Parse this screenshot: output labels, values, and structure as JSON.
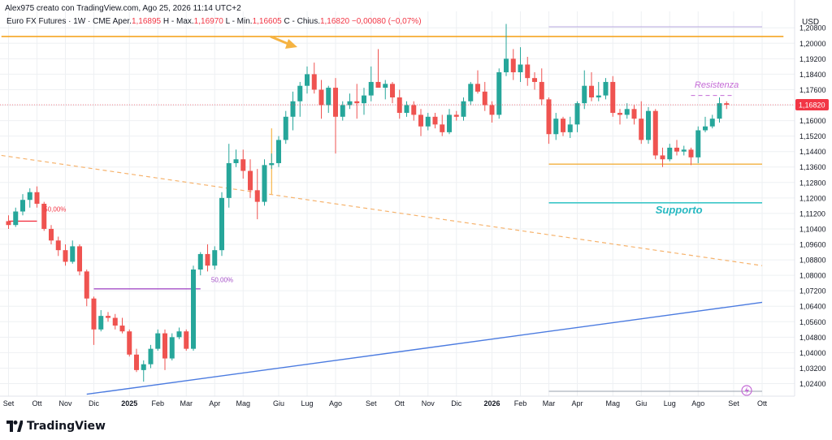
{
  "header": {
    "credit": "Alex975 creato con TradingView.com, Ago 25, 2026 11:14 UTC+2",
    "symbol": "Euro FX Futures · 1W · CME",
    "open_label": "Aper.",
    "open": "1,16895",
    "high_label": "H - Max.",
    "high": "1,16970",
    "low_label": "L - Min.",
    "low": "1,16605",
    "close_label": "C - Chius.",
    "close": "1,16820",
    "change": "−0,00080 (−0,07%)"
  },
  "logo": {
    "text": "TradingView"
  },
  "chart_data": {
    "type": "candlestick",
    "currency": "USD",
    "price_axis": {
      "ticks": [
        1.208,
        1.2,
        1.192,
        1.184,
        1.176,
        1.168,
        1.16,
        1.152,
        1.144,
        1.136,
        1.128,
        1.12,
        1.112,
        1.104,
        1.096,
        1.088,
        1.08,
        1.072,
        1.064,
        1.056,
        1.048,
        1.04,
        1.032,
        1.024
      ],
      "tick_labels": [
        "1,20800",
        "1,20000",
        "1,19200",
        "1,18400",
        "1,17600",
        "1,16800",
        "1,16000",
        "1,15200",
        "1,14400",
        "1,13600",
        "1,12800",
        "1,12000",
        "1,11200",
        "1,10400",
        "1,09600",
        "1,08800",
        "1,08000",
        "1,07200",
        "1,06400",
        "1,05600",
        "1,04800",
        "1,04000",
        "1,03200",
        "1,02400"
      ],
      "range": [
        1.0175,
        1.2165
      ],
      "last_price": 1.1682,
      "last_price_label": "1,16820"
    },
    "time_axis": {
      "labels": [
        {
          "text": "Set",
          "i": 0
        },
        {
          "text": "Ott",
          "i": 4
        },
        {
          "text": "Nov",
          "i": 8
        },
        {
          "text": "Dic",
          "i": 12
        },
        {
          "text": "2025",
          "i": 17,
          "bold": true
        },
        {
          "text": "Feb",
          "i": 21
        },
        {
          "text": "Mar",
          "i": 25
        },
        {
          "text": "Apr",
          "i": 29
        },
        {
          "text": "Mag",
          "i": 33
        },
        {
          "text": "Giu",
          "i": 38
        },
        {
          "text": "Lug",
          "i": 42
        },
        {
          "text": "Ago",
          "i": 46
        },
        {
          "text": "Set",
          "i": 51
        },
        {
          "text": "Ott",
          "i": 55
        },
        {
          "text": "Nov",
          "i": 59
        },
        {
          "text": "Dic",
          "i": 63
        },
        {
          "text": "2026",
          "i": 68,
          "bold": true
        },
        {
          "text": "Feb",
          "i": 72
        },
        {
          "text": "Mar",
          "i": 76
        },
        {
          "text": "Apr",
          "i": 80
        },
        {
          "text": "Mag",
          "i": 85
        },
        {
          "text": "Giu",
          "i": 89
        },
        {
          "text": "Lug",
          "i": 93
        },
        {
          "text": "Ago",
          "i": 97
        },
        {
          "text": "Set",
          "i": 102
        },
        {
          "text": "Ott",
          "i": 106
        }
      ]
    },
    "candles": [
      [
        1.108,
        1.111,
        1.104,
        1.106
      ],
      [
        1.106,
        1.115,
        1.105,
        1.113
      ],
      [
        1.113,
        1.122,
        1.111,
        1.119
      ],
      [
        1.119,
        1.125,
        1.115,
        1.123
      ],
      [
        1.123,
        1.126,
        1.115,
        1.117
      ],
      [
        1.117,
        1.118,
        1.103,
        1.104
      ],
      [
        1.104,
        1.106,
        1.096,
        1.098
      ],
      [
        1.098,
        1.1,
        1.09,
        1.093
      ],
      [
        1.093,
        1.096,
        1.085,
        1.087
      ],
      [
        1.087,
        1.098,
        1.086,
        1.095
      ],
      [
        1.095,
        1.096,
        1.08,
        1.082
      ],
      [
        1.082,
        1.083,
        1.064,
        1.068
      ],
      [
        1.068,
        1.069,
        1.044,
        1.052
      ],
      [
        1.052,
        1.062,
        1.051,
        1.059
      ],
      [
        1.059,
        1.061,
        1.056,
        1.058
      ],
      [
        1.058,
        1.06,
        1.052,
        1.054
      ],
      [
        1.054,
        1.058,
        1.05,
        1.051
      ],
      [
        1.051,
        1.052,
        1.038,
        1.039
      ],
      [
        1.039,
        1.042,
        1.03,
        1.031
      ],
      [
        1.031,
        1.036,
        1.025,
        1.034
      ],
      [
        1.034,
        1.044,
        1.032,
        1.042
      ],
      [
        1.042,
        1.052,
        1.041,
        1.05
      ],
      [
        1.05,
        1.052,
        1.031,
        1.037
      ],
      [
        1.037,
        1.05,
        1.036,
        1.048
      ],
      [
        1.048,
        1.053,
        1.047,
        1.051
      ],
      [
        1.051,
        1.052,
        1.041,
        1.042
      ],
      [
        1.042,
        1.085,
        1.041,
        1.083
      ],
      [
        1.083,
        1.092,
        1.08,
        1.091
      ],
      [
        1.091,
        1.096,
        1.082,
        1.085
      ],
      [
        1.085,
        1.095,
        1.083,
        1.093
      ],
      [
        1.093,
        1.123,
        1.09,
        1.12
      ],
      [
        1.12,
        1.148,
        1.115,
        1.138
      ],
      [
        1.138,
        1.145,
        1.136,
        1.14
      ],
      [
        1.14,
        1.145,
        1.13,
        1.134
      ],
      [
        1.134,
        1.14,
        1.12,
        1.124
      ],
      [
        1.124,
        1.135,
        1.109,
        1.118
      ],
      [
        1.118,
        1.14,
        1.116,
        1.137
      ],
      [
        1.137,
        1.143,
        1.135,
        1.138
      ],
      [
        1.138,
        1.152,
        1.136,
        1.15
      ],
      [
        1.15,
        1.165,
        1.148,
        1.162
      ],
      [
        1.162,
        1.175,
        1.155,
        1.17
      ],
      [
        1.17,
        1.18,
        1.162,
        1.178
      ],
      [
        1.178,
        1.188,
        1.174,
        1.184
      ],
      [
        1.184,
        1.19,
        1.174,
        1.176
      ],
      [
        1.176,
        1.181,
        1.161,
        1.168
      ],
      [
        1.168,
        1.178,
        1.164,
        1.177
      ],
      [
        1.177,
        1.182,
        1.143,
        1.162
      ],
      [
        1.162,
        1.17,
        1.16,
        1.168
      ],
      [
        1.168,
        1.174,
        1.166,
        1.17
      ],
      [
        1.17,
        1.179,
        1.161,
        1.169
      ],
      [
        1.169,
        1.177,
        1.163,
        1.173
      ],
      [
        1.173,
        1.188,
        1.17,
        1.18
      ],
      [
        1.18,
        1.197,
        1.178,
        1.177
      ],
      [
        1.177,
        1.181,
        1.171,
        1.179
      ],
      [
        1.179,
        1.18,
        1.169,
        1.172
      ],
      [
        1.172,
        1.176,
        1.161,
        1.164
      ],
      [
        1.164,
        1.17,
        1.162,
        1.168
      ],
      [
        1.168,
        1.17,
        1.16,
        1.163
      ],
      [
        1.163,
        1.166,
        1.152,
        1.157
      ],
      [
        1.157,
        1.164,
        1.155,
        1.162
      ],
      [
        1.162,
        1.164,
        1.156,
        1.158
      ],
      [
        1.158,
        1.163,
        1.152,
        1.154
      ],
      [
        1.154,
        1.166,
        1.153,
        1.163
      ],
      [
        1.163,
        1.165,
        1.16,
        1.162
      ],
      [
        1.162,
        1.172,
        1.16,
        1.17
      ],
      [
        1.17,
        1.18,
        1.168,
        1.179
      ],
      [
        1.179,
        1.186,
        1.174,
        1.175
      ],
      [
        1.175,
        1.18,
        1.165,
        1.168
      ],
      [
        1.168,
        1.17,
        1.159,
        1.163
      ],
      [
        1.163,
        1.187,
        1.161,
        1.185
      ],
      [
        1.185,
        1.21,
        1.183,
        1.192
      ],
      [
        1.192,
        1.197,
        1.181,
        1.185
      ],
      [
        1.185,
        1.198,
        1.18,
        1.189
      ],
      [
        1.189,
        1.193,
        1.178,
        1.182
      ],
      [
        1.182,
        1.185,
        1.176,
        1.18
      ],
      [
        1.18,
        1.187,
        1.168,
        1.171
      ],
      [
        1.171,
        1.172,
        1.148,
        1.153
      ],
      [
        1.153,
        1.164,
        1.15,
        1.161
      ],
      [
        1.161,
        1.162,
        1.152,
        1.154
      ],
      [
        1.154,
        1.162,
        1.151,
        1.158
      ],
      [
        1.158,
        1.17,
        1.154,
        1.169
      ],
      [
        1.169,
        1.186,
        1.166,
        1.178
      ],
      [
        1.178,
        1.185,
        1.17,
        1.172
      ],
      [
        1.172,
        1.18,
        1.17,
        1.173
      ],
      [
        1.173,
        1.182,
        1.171,
        1.18
      ],
      [
        1.18,
        1.183,
        1.162,
        1.164
      ],
      [
        1.164,
        1.166,
        1.158,
        1.163
      ],
      [
        1.163,
        1.169,
        1.161,
        1.166
      ],
      [
        1.166,
        1.168,
        1.158,
        1.161
      ],
      [
        1.161,
        1.17,
        1.148,
        1.15
      ],
      [
        1.15,
        1.167,
        1.148,
        1.165
      ],
      [
        1.165,
        1.166,
        1.14,
        1.142
      ],
      [
        1.142,
        1.146,
        1.136,
        1.14
      ],
      [
        1.14,
        1.148,
        1.139,
        1.146
      ],
      [
        1.146,
        1.15,
        1.142,
        1.144
      ],
      [
        1.144,
        1.147,
        1.142,
        1.145
      ],
      [
        1.145,
        1.146,
        1.137,
        1.141
      ],
      [
        1.141,
        1.157,
        1.138,
        1.155
      ],
      [
        1.155,
        1.162,
        1.154,
        1.157
      ],
      [
        1.157,
        1.163,
        1.156,
        1.161
      ],
      [
        1.161,
        1.172,
        1.159,
        1.169
      ],
      [
        1.169,
        1.17,
        1.166,
        1.1682
      ]
    ],
    "drawings": [
      {
        "kind": "hline",
        "from_i": -1,
        "to_i": 109,
        "y": 1.2035,
        "color": "#f5a623",
        "width": 1.6
      },
      {
        "kind": "hline",
        "from_i": 76,
        "to_i": 106,
        "y": 1.2085,
        "color": "#b8a8e0",
        "width": 1
      },
      {
        "kind": "hline",
        "from_i": 76,
        "to_i": 106,
        "y": 1.02,
        "color": "#9aa0ad",
        "width": 1
      },
      {
        "kind": "hline",
        "from_i": 76,
        "to_i": 106,
        "y": 1.1375,
        "color": "#f2b13e",
        "width": 1.4
      },
      {
        "kind": "hline",
        "from_i": 76,
        "to_i": 106,
        "y": 1.1175,
        "color": "#3cc6c8",
        "width": 1.6
      },
      {
        "kind": "hline",
        "from_i": 96,
        "to_i": 102,
        "y": 1.173,
        "color": "#c46ad6",
        "width": 1,
        "dash": "5,4"
      },
      {
        "kind": "line",
        "from_i": 11,
        "y1": 1.0185,
        "to_i": 106,
        "y2": 1.066,
        "color": "#4b7be0",
        "width": 1.4
      },
      {
        "kind": "line",
        "from_i": -1,
        "y1": 1.142,
        "to_i": 106,
        "y2": 1.085,
        "color": "#f6b26b",
        "width": 1.2,
        "dash": "5,4"
      },
      {
        "kind": "line",
        "from_i": 37,
        "y1": 1.156,
        "to_i": 37,
        "y2": 1.122,
        "color": "#f5a623",
        "width": 1
      },
      {
        "kind": "hline",
        "from_i": 0,
        "to_i": 4,
        "y": 1.108,
        "color": "#f23645",
        "width": 1.4
      },
      {
        "kind": "hline",
        "from_i": 12,
        "to_i": 27,
        "y": 1.073,
        "color": "#a44fc7",
        "width": 1.4
      }
    ],
    "annotations": [
      {
        "text": "Resistenza",
        "i": 96.5,
        "y": 1.177,
        "color": "#c46ad6",
        "size": 11,
        "italic": true,
        "bold": false
      },
      {
        "text": "Supporto",
        "i": 91,
        "y": 1.112,
        "color": "#27b9c2",
        "size": 13,
        "italic": true,
        "bold": true
      },
      {
        "text": "50,00%",
        "i": 5,
        "y": 1.113,
        "color": "#f23645",
        "size": 8,
        "italic": false,
        "bold": false
      },
      {
        "text": "50,00%",
        "i": 28.5,
        "y": 1.0765,
        "color": "#a44fc7",
        "size": 8,
        "italic": false,
        "bold": false
      }
    ],
    "colors": {
      "up": "#26a69a",
      "down": "#ef5350",
      "grid": "#eef0f3",
      "axis_text": "#131722",
      "last_price_bg": "#f23645"
    }
  }
}
